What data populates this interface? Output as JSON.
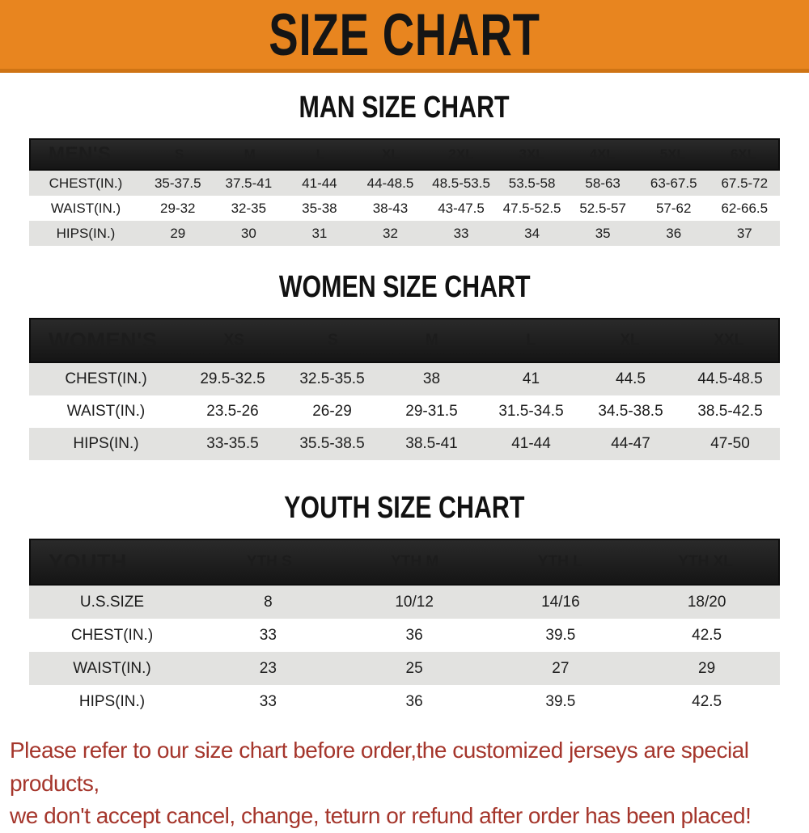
{
  "banner": {
    "title": "SIZE CHART",
    "bg_color": "#E8851F",
    "text_color": "#151515"
  },
  "colors": {
    "header_row_bg": "#1A1A1A",
    "shaded_row_bg": "#E2E2E0",
    "footer_text_color": "#A5362C"
  },
  "sections": {
    "men": {
      "title": "MAN SIZE CHART",
      "table": {
        "label": "MEN'S",
        "columns": [
          "S",
          "M",
          "L",
          "XL",
          "2XL",
          "3XL",
          "4XL",
          "5XL",
          "6XL"
        ],
        "rows": [
          {
            "label": "CHEST(IN.)",
            "values": [
              "35-37.5",
              "37.5-41",
              "41-44",
              "44-48.5",
              "48.5-53.5",
              "53.5-58",
              "58-63",
              "63-67.5",
              "67.5-72"
            ]
          },
          {
            "label": "WAIST(IN.)",
            "values": [
              "29-32",
              "32-35",
              "35-38",
              "38-43",
              "43-47.5",
              "47.5-52.5",
              "52.5-57",
              "57-62",
              "62-66.5"
            ]
          },
          {
            "label": "HIPS(IN.)",
            "values": [
              "29",
              "30",
              "31",
              "32",
              "33",
              "34",
              "35",
              "36",
              "37"
            ]
          }
        ]
      }
    },
    "women": {
      "title": "WOMEN SIZE CHART",
      "table": {
        "label": "WOMEN'S",
        "columns": [
          "XS",
          "S",
          "M",
          "L",
          "XL",
          "XXL"
        ],
        "rows": [
          {
            "label": "CHEST(IN.)",
            "values": [
              "29.5-32.5",
              "32.5-35.5",
              "38",
              "41",
              "44.5",
              "44.5-48.5"
            ]
          },
          {
            "label": "WAIST(IN.)",
            "values": [
              "23.5-26",
              "26-29",
              "29-31.5",
              "31.5-34.5",
              "34.5-38.5",
              "38.5-42.5"
            ]
          },
          {
            "label": "HIPS(IN.)",
            "values": [
              "33-35.5",
              "35.5-38.5",
              "38.5-41",
              "41-44",
              "44-47",
              "47-50"
            ]
          }
        ]
      }
    },
    "youth": {
      "title": "YOUTH SIZE CHART",
      "table": {
        "label": "YOUTH",
        "columns": [
          "YTH S",
          "YTH M",
          "YTH L",
          "YTH XL"
        ],
        "rows": [
          {
            "label": "U.S.SIZE",
            "values": [
              "8",
              "10/12",
              "14/16",
              "18/20"
            ]
          },
          {
            "label": "CHEST(IN.)",
            "values": [
              "33",
              "36",
              "39.5",
              "42.5"
            ]
          },
          {
            "label": "WAIST(IN.)",
            "values": [
              "23",
              "25",
              "27",
              "29"
            ]
          },
          {
            "label": "HIPS(IN.)",
            "values": [
              "33",
              "36",
              "39.5",
              "42.5"
            ]
          }
        ]
      }
    }
  },
  "footer": {
    "line1": "Please refer to our size chart before order,the customized jerseys are special products,",
    "line2": "we don't accept cancel, change, teturn or refund after order has been placed!"
  }
}
